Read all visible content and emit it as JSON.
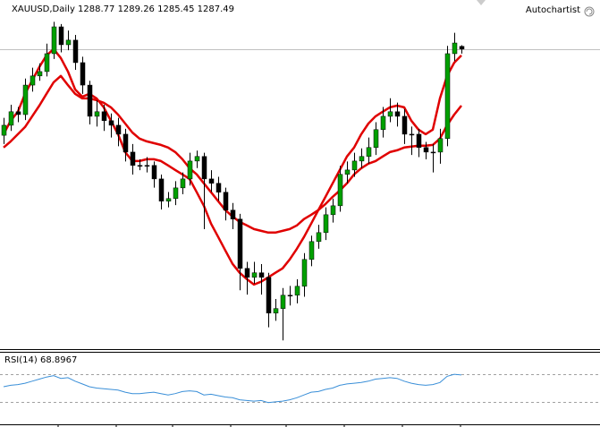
{
  "chart_data": [
    {
      "type": "candlestick",
      "title": "XAUUSD,Daily 1288.77 1289.26 1285.45 1287.49",
      "badge": "Autochartist",
      "ylim": [
        1150,
        1310
      ],
      "up_color": "#00a000",
      "down_color": "#000000",
      "open": [
        1248.0,
        1252.6,
        1258.8,
        1257.5,
        1271.0,
        1275.2,
        1277.2,
        1285.4,
        1297.7,
        1289.5,
        1291.6,
        1281.3,
        1271.0,
        1256.7,
        1258.8,
        1254.7,
        1252.6,
        1248.5,
        1240.3,
        1234.2,
        1234.2,
        1234.2,
        1228.0,
        1217.8,
        1219.0,
        1223.9,
        1228.0,
        1236.2,
        1238.3,
        1228.0,
        1226.0,
        1221.9,
        1213.7,
        1209.6,
        1187.0,
        1182.9,
        1185.0,
        1182.9,
        1166.5,
        1168.6,
        1174.7,
        1174.7,
        1178.8,
        1191.1,
        1199.3,
        1203.4,
        1211.6,
        1215.7,
        1230.1,
        1232.1,
        1236.2,
        1238.3,
        1242.4,
        1250.6,
        1256.7,
        1258.8,
        1256.7,
        1248.5,
        1248.5,
        1242.4,
        1240.3,
        1240.3,
        1246.5,
        1285.4,
        1288.77
      ],
      "high": [
        1256,
        1262,
        1261,
        1274,
        1279,
        1281,
        1290,
        1300,
        1299,
        1296,
        1294,
        1284,
        1273,
        1264,
        1262,
        1258,
        1256,
        1251,
        1244,
        1237,
        1238,
        1236,
        1230,
        1222,
        1227,
        1231,
        1240,
        1241,
        1240,
        1232,
        1229,
        1224,
        1217,
        1212,
        1190,
        1190,
        1189,
        1185,
        1173,
        1178,
        1179,
        1182,
        1194,
        1202,
        1207,
        1215,
        1219,
        1234,
        1236,
        1240,
        1242,
        1247,
        1254,
        1261,
        1265,
        1263,
        1260,
        1252,
        1251,
        1245,
        1244,
        1251,
        1289,
        1295,
        1289.26
      ],
      "low": [
        1244,
        1250,
        1254,
        1255,
        1268,
        1273,
        1275,
        1283,
        1286,
        1287,
        1278,
        1267,
        1253,
        1252,
        1250,
        1247,
        1243,
        1236,
        1230,
        1232,
        1231,
        1224,
        1214,
        1215,
        1216,
        1221,
        1225,
        1233,
        1205,
        1222,
        1218,
        1209,
        1205,
        1177,
        1175,
        1180,
        1175,
        1160,
        1163,
        1154,
        1170,
        1171,
        1174,
        1188,
        1196,
        1200,
        1208,
        1213,
        1226,
        1229,
        1233,
        1235,
        1239,
        1247,
        1254,
        1252,
        1244,
        1239,
        1238,
        1237,
        1231,
        1235,
        1243,
        1282,
        1285.45
      ],
      "close": [
        1252.6,
        1258.8,
        1257.5,
        1271.0,
        1275.2,
        1277.2,
        1285.4,
        1297.7,
        1289.5,
        1291.6,
        1281.3,
        1271.0,
        1256.7,
        1258.8,
        1254.7,
        1252.6,
        1248.5,
        1240.3,
        1234.2,
        1234.2,
        1234.2,
        1228.0,
        1217.8,
        1219.0,
        1223.9,
        1228.0,
        1236.2,
        1238.3,
        1228.0,
        1226.0,
        1221.9,
        1213.7,
        1209.6,
        1187.0,
        1182.9,
        1185.0,
        1182.9,
        1166.5,
        1168.6,
        1174.7,
        1174.7,
        1178.8,
        1191.1,
        1199.3,
        1203.4,
        1211.6,
        1215.7,
        1230.1,
        1232.1,
        1236.2,
        1238.3,
        1242.4,
        1250.6,
        1256.7,
        1258.8,
        1256.7,
        1248.5,
        1248.5,
        1242.4,
        1240.3,
        1240.3,
        1246.5,
        1285.4,
        1290.3,
        1287.49
      ],
      "series": [
        {
          "color": "#e00000",
          "values": [
            1248.5,
            1254.7,
            1258.8,
            1267.0,
            1273.1,
            1279.3,
            1284.6,
            1287.5,
            1283.4,
            1277.2,
            1269.0,
            1265.7,
            1267.0,
            1264.9,
            1260.8,
            1254.7,
            1248.5,
            1240.3,
            1236.2,
            1236.2,
            1237.0,
            1237.0,
            1236.2,
            1234.2,
            1232.1,
            1230.1,
            1228.0,
            1221.9,
            1215.7,
            1207.5,
            1201.4,
            1195.2,
            1189.1,
            1185.0,
            1182.1,
            1179.6,
            1180.9,
            1182.9,
            1185.0,
            1187.0,
            1191.1,
            1196.0,
            1201.4,
            1207.5,
            1213.7,
            1219.8,
            1226.0,
            1232.1,
            1238.3,
            1242.4,
            1248.5,
            1253.4,
            1256.7,
            1258.8,
            1260.8,
            1261.6,
            1260.8,
            1254.7,
            1250.6,
            1248.5,
            1250.6,
            1264.9,
            1275.2,
            1281.3,
            1284.6
          ]
        },
        {
          "color": "#e00000",
          "values": [
            1242.4,
            1245.2,
            1248.5,
            1251.8,
            1256.7,
            1261.6,
            1267.0,
            1272.3,
            1275.2,
            1271.0,
            1267.0,
            1264.9,
            1264.9,
            1264.1,
            1262.9,
            1260.8,
            1257.5,
            1253.4,
            1249.3,
            1246.5,
            1245.2,
            1244.4,
            1243.6,
            1242.4,
            1240.3,
            1237.0,
            1232.9,
            1230.1,
            1226.0,
            1221.9,
            1217.8,
            1213.7,
            1210.8,
            1208.3,
            1206.7,
            1205.0,
            1204.2,
            1203.4,
            1203.4,
            1204.2,
            1205.0,
            1206.7,
            1209.6,
            1211.6,
            1213.7,
            1216.5,
            1219.8,
            1222.7,
            1226.0,
            1230.1,
            1232.9,
            1235.0,
            1236.2,
            1238.3,
            1240.3,
            1241.1,
            1242.4,
            1242.8,
            1243.2,
            1243.2,
            1243.6,
            1246.5,
            1252.6,
            1257.5,
            1261.6
          ]
        }
      ]
    },
    {
      "type": "line",
      "title": "RSI(14) 68.8967",
      "ylim": [
        0,
        100
      ],
      "levels": [
        30,
        70
      ],
      "color": "#3a8fd8",
      "values": [
        52,
        54,
        55,
        57,
        60,
        63,
        66,
        68,
        64,
        65,
        60,
        56,
        52,
        50,
        49,
        48,
        47,
        44,
        42,
        42,
        43,
        44,
        42,
        40,
        42,
        45,
        46,
        45,
        40,
        41,
        39,
        37,
        36,
        33,
        32,
        31,
        32,
        29,
        30,
        31,
        33,
        36,
        40,
        44,
        45,
        48,
        50,
        54,
        56,
        57,
        58,
        60,
        63,
        64,
        65,
        64,
        60,
        57,
        55,
        54,
        55,
        58,
        67,
        70,
        68.9
      ]
    }
  ]
}
